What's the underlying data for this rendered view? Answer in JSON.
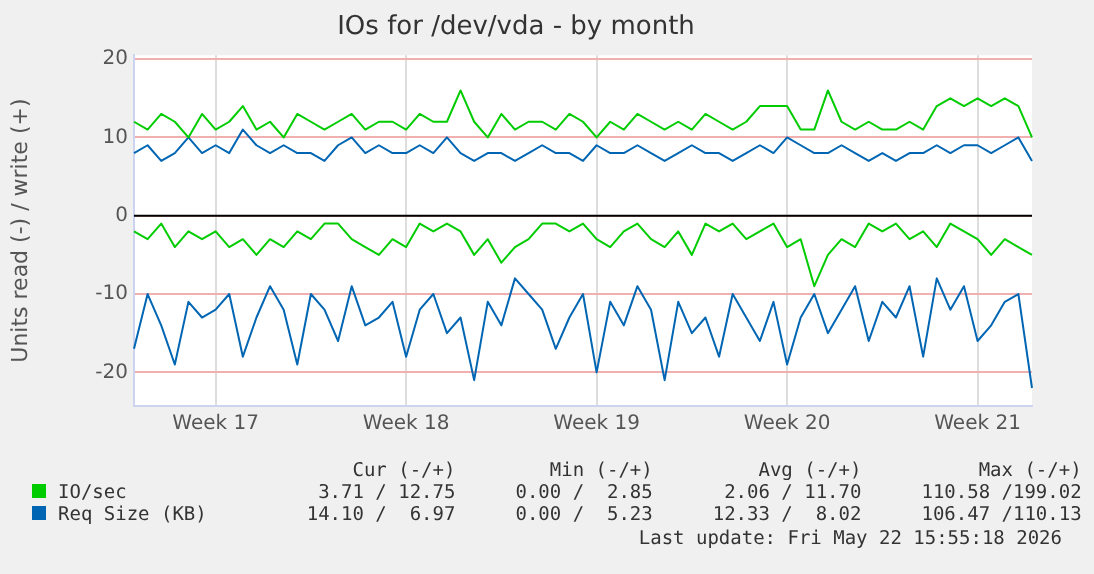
{
  "chart_data": {
    "type": "line",
    "title": "IOs for /dev/vda - by month",
    "ylabel": "Units read (-) / write (+)",
    "categories": [
      null,
      null,
      null,
      null,
      null,
      null,
      "Week 17",
      null,
      null,
      null,
      null,
      null,
      null,
      null,
      null,
      null,
      null,
      null,
      null,
      null,
      "Week 18",
      null,
      null,
      null,
      null,
      null,
      null,
      null,
      null,
      null,
      null,
      null,
      null,
      null,
      "Week 19",
      null,
      null,
      null,
      null,
      null,
      null,
      null,
      null,
      null,
      null,
      null,
      null,
      null,
      "Week 20",
      null,
      null,
      null,
      null,
      null,
      null,
      null,
      null,
      null,
      null,
      null,
      null,
      null,
      "Week 21",
      null,
      null,
      null,
      null
    ],
    "series": [
      {
        "name": "IO/sec",
        "color": "#00cc00",
        "values": [
          12,
          11,
          13,
          12,
          10,
          13,
          11,
          12,
          14,
          11,
          12,
          10,
          13,
          12,
          11,
          12,
          13,
          11,
          12,
          12,
          11,
          13,
          12,
          12,
          16,
          12,
          10,
          13,
          11,
          12,
          12,
          11,
          13,
          12,
          10,
          12,
          11,
          13,
          12,
          11,
          12,
          11,
          13,
          12,
          11,
          12,
          14,
          14,
          14,
          11,
          11,
          16,
          12,
          11,
          12,
          11,
          11,
          12,
          11,
          14,
          15,
          14,
          15,
          14,
          15,
          14,
          10
        ]
      },
      {
        "color": "#00cc00",
        "values": [
          -2,
          -3,
          -1,
          -4,
          -2,
          -3,
          -2,
          -4,
          -3,
          -5,
          -3,
          -4,
          -2,
          -3,
          -1,
          -1,
          -3,
          -4,
          -5,
          -3,
          -4,
          -1,
          -2,
          -1,
          -2,
          -5,
          -3,
          -6,
          -4,
          -3,
          -1,
          -1,
          -2,
          -1,
          -3,
          -4,
          -2,
          -1,
          -3,
          -4,
          -2,
          -5,
          -1,
          -2,
          -1,
          -3,
          -2,
          -1,
          -4,
          -3,
          -9,
          -5,
          -3,
          -4,
          -1,
          -2,
          -1,
          -3,
          -2,
          -4,
          -1,
          -2,
          -3,
          -5,
          -3,
          -4,
          -5
        ]
      },
      {
        "name": "Req Size (KB)",
        "color": "#0066b3",
        "values": [
          8,
          9,
          7,
          8,
          10,
          8,
          9,
          8,
          11,
          9,
          8,
          9,
          8,
          8,
          7,
          9,
          10,
          8,
          9,
          8,
          8,
          9,
          8,
          10,
          8,
          7,
          8,
          8,
          7,
          8,
          9,
          8,
          8,
          7,
          9,
          8,
          8,
          9,
          8,
          7,
          8,
          9,
          8,
          8,
          7,
          8,
          9,
          8,
          10,
          9,
          8,
          8,
          9,
          8,
          7,
          8,
          7,
          8,
          8,
          9,
          8,
          9,
          9,
          8,
          9,
          10,
          7
        ]
      },
      {
        "color": "#0066b3",
        "values": [
          -17,
          -10,
          -14,
          -19,
          -11,
          -13,
          -12,
          -10,
          -18,
          -13,
          -9,
          -12,
          -19,
          -10,
          -12,
          -16,
          -9,
          -14,
          -13,
          -11,
          -18,
          -12,
          -10,
          -15,
          -13,
          -21,
          -11,
          -14,
          -8,
          -10,
          -12,
          -17,
          -13,
          -10,
          -20,
          -11,
          -14,
          -9,
          -12,
          -21,
          -11,
          -15,
          -13,
          -18,
          -10,
          -13,
          -16,
          -11,
          -19,
          -13,
          -10,
          -15,
          -12,
          -9,
          -16,
          -11,
          -13,
          -9,
          -18,
          -8,
          -12,
          -9,
          -16,
          -14,
          -11,
          -10,
          -22
        ]
      }
    ],
    "ylim": [
      -24.3,
      20.5
    ],
    "yticks": [
      -20,
      -10,
      0,
      10,
      20
    ],
    "ref_lines": [
      {
        "axis": "y",
        "value": 0,
        "color": "#000000"
      }
    ],
    "grid": true,
    "legend": "bottom",
    "annotations": [
      "Cur (-/+)",
      "Min (-/+)",
      "Avg (-/+)",
      "Max (-/+)",
      "3.71 / 12.75",
      "0.00 /  2.85",
      "2.06 / 11.70",
      "110.58 /199.02",
      "14.10 /  6.97",
      "0.00 /  5.23",
      "12.33 /  8.02",
      "106.47 /110.13",
      "Last update: Fri May 22 15:55:18 2026"
    ]
  }
}
